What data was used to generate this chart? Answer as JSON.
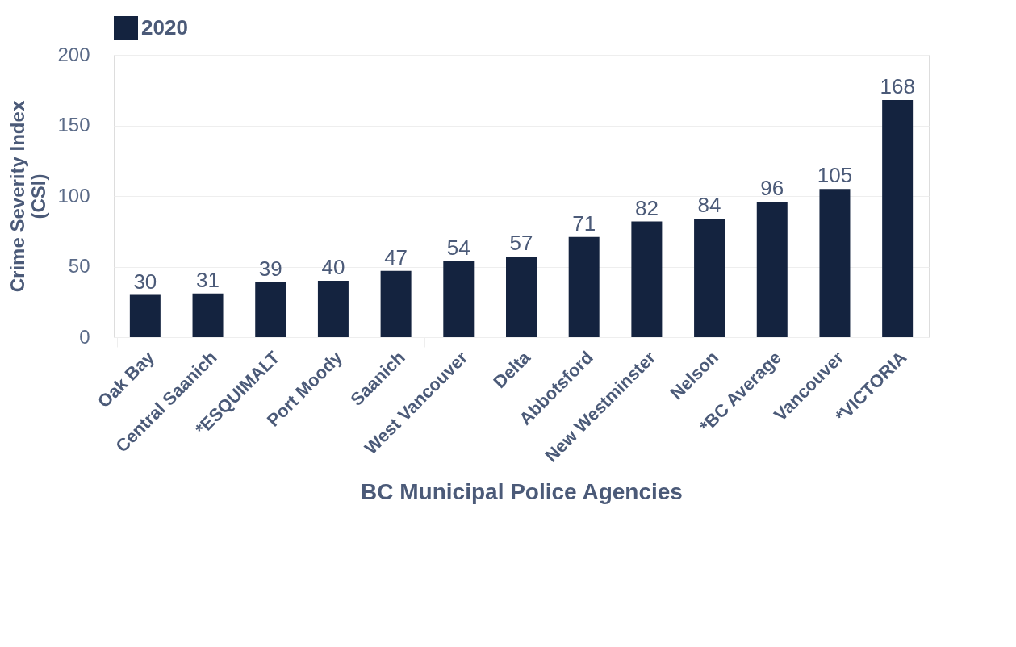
{
  "chart_data": {
    "type": "bar",
    "xlabel": "BC Municipal Police Agencies",
    "ylabel": "Crime Severity Index (CSI)",
    "categories": [
      "Oak Bay",
      "Central Saanich",
      "*ESQUIMALT",
      "Port Moody",
      "Saanich",
      "West Vancouver",
      "Delta",
      "Abbotsford",
      "New Westminster",
      "Nelson",
      "*BC Average",
      "Vancouver",
      "*VICTORIA"
    ],
    "series": [
      {
        "name": "2020",
        "color": "#14233f",
        "values": [
          30,
          31,
          39,
          40,
          47,
          54,
          57,
          71,
          82,
          84,
          96,
          105,
          168
        ]
      }
    ],
    "ylim": [
      0,
      200
    ],
    "yticks": [
      0,
      50,
      100,
      150,
      200
    ],
    "grid": "y",
    "legend": "top",
    "data_labels": true
  }
}
